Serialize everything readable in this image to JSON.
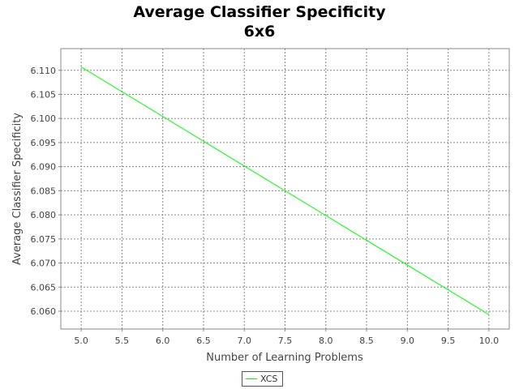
{
  "chart_data": {
    "type": "line",
    "title": "Average Classifier Specificity",
    "subtitle": "6x6",
    "xlabel": "Number of Learning Problems",
    "ylabel": "Average Classifier Specificity",
    "xlim": [
      4.75,
      10.25
    ],
    "ylim": [
      6.0563,
      6.1145
    ],
    "x_ticks": [
      "5.0",
      "5.5",
      "6.0",
      "6.5",
      "7.0",
      "7.5",
      "8.0",
      "8.5",
      "9.0",
      "9.5",
      "10.0"
    ],
    "y_ticks": [
      "6.060",
      "6.065",
      "6.070",
      "6.075",
      "6.080",
      "6.085",
      "6.090",
      "6.095",
      "6.100",
      "6.105",
      "6.110"
    ],
    "grid": true,
    "legend_position": "bottom-center",
    "series": [
      {
        "name": "XCS",
        "color": "#00ff00",
        "x": [
          5.0,
          10.0
        ],
        "y": [
          6.1107,
          6.0593
        ]
      }
    ]
  }
}
